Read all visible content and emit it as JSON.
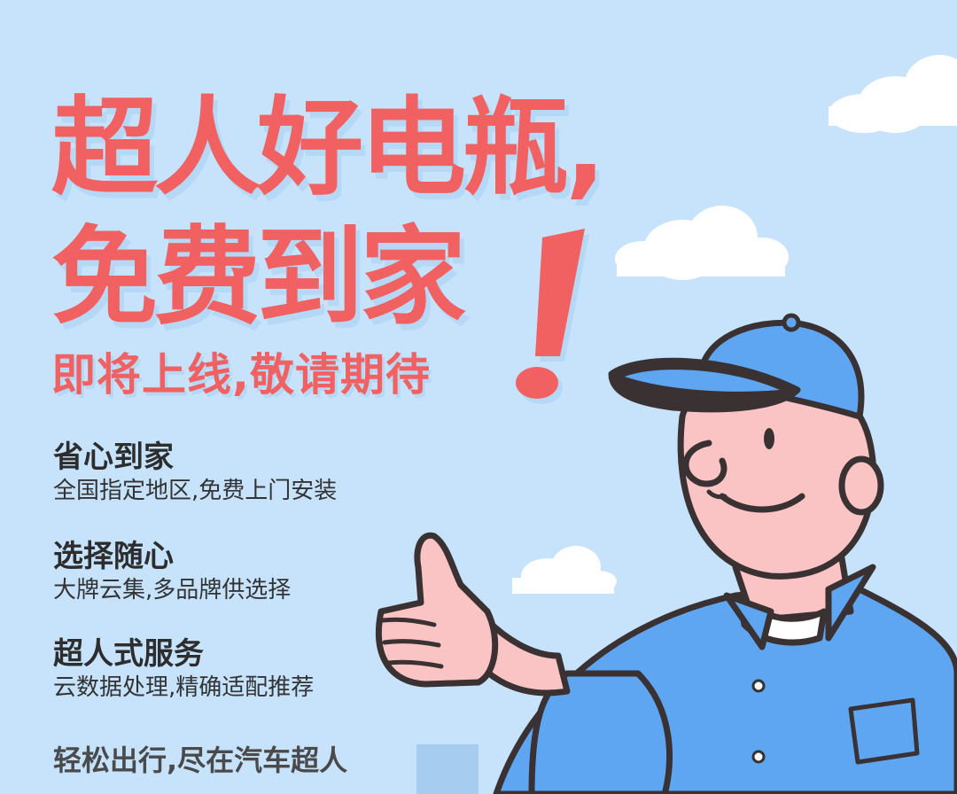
{
  "headline": {
    "line1": "超人好电瓶,",
    "line2": "免费到家",
    "line3": "即将上线,敬请期待"
  },
  "features": [
    {
      "title": "省心到家",
      "desc": "全国指定地区,免费上门安装"
    },
    {
      "title": "选择随心",
      "desc": "大牌云集,多品牌供选择"
    },
    {
      "title": "超人式服务",
      "desc": "云数据处理,精确适配推荐"
    }
  ],
  "tagline": "轻松出行,尽在汽车超人",
  "colors": {
    "background": "#c6e3fb",
    "headline": "#f26161",
    "uniform": "#5ea6f2",
    "skin": "#fbc4c4",
    "outline": "#3a3133"
  },
  "illustration": {
    "character": "mechanic-thumbs-up",
    "decorations": [
      "cloud",
      "cloud",
      "cloud",
      "exclamation-mark"
    ]
  }
}
